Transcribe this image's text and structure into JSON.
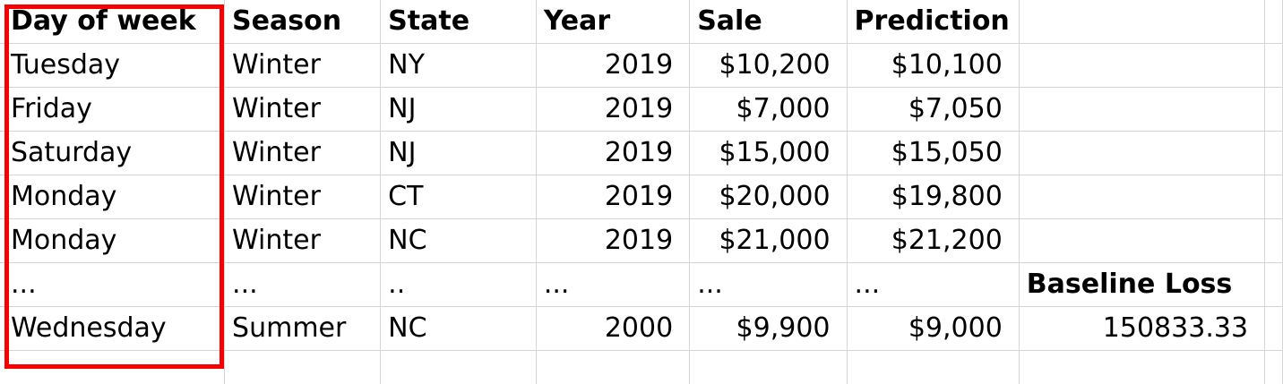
{
  "headers": [
    "Day of week",
    "Season",
    "State",
    "Year",
    "Sale",
    "Prediction"
  ],
  "rows": [
    [
      "Tuesday",
      "Winter",
      "NY",
      "2019",
      "$10,200",
      "$10,100"
    ],
    [
      "Friday",
      "Winter",
      "NJ",
      "2019",
      "$7,000",
      "$7,050"
    ],
    [
      "Saturday",
      "Winter",
      "NJ",
      "2019",
      "$15,000",
      "$15,050"
    ],
    [
      "Monday",
      "Winter",
      "CT",
      "2019",
      "$20,000",
      "$19,800"
    ],
    [
      "Monday",
      "Winter",
      "NC",
      "2019",
      "$21,000",
      "$21,200"
    ],
    [
      "...",
      "...",
      "..",
      "...",
      "...",
      "..."
    ],
    [
      "Wednesday",
      "Summer",
      "NC",
      "2000",
      "$9,900",
      "$9,000"
    ]
  ],
  "baseline": {
    "label": "Baseline Loss",
    "value": "150833.33"
  },
  "colors": {
    "highlight_border": "#f80000",
    "gridline": "#d4d4d4"
  }
}
